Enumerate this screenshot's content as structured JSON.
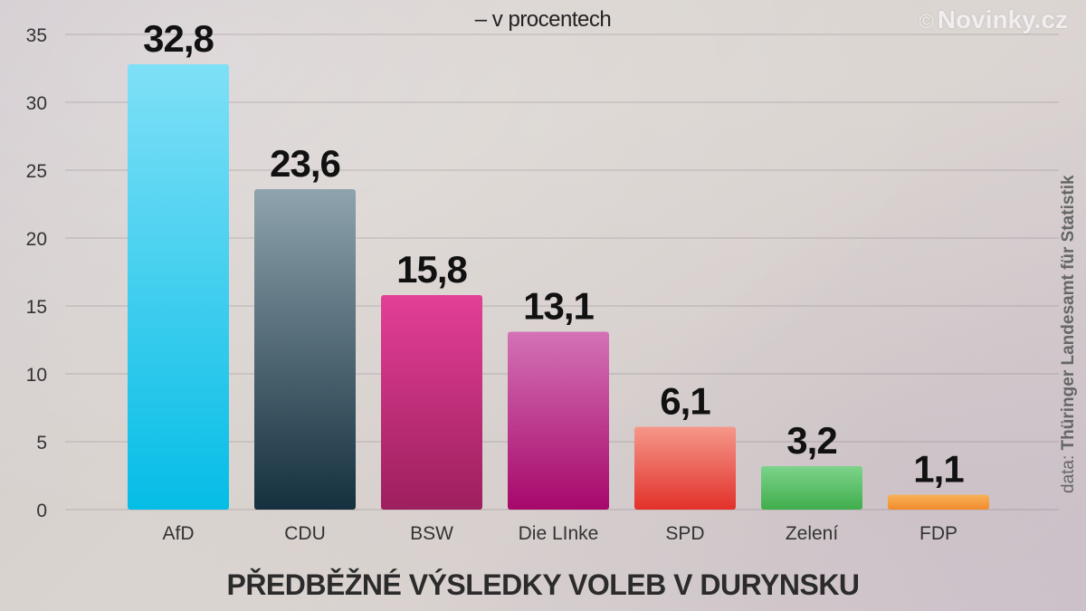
{
  "header": {
    "subtitle": "– v procentech",
    "brand_copy": "©",
    "brand_name": "Novinky.cz"
  },
  "source": {
    "prefix": "data: ",
    "name": "Thüringer Landesamt für Statistik"
  },
  "chart_data": {
    "type": "bar",
    "title": "PŘEDBĚŽNÉ VÝSLEDKY VOLEB V DURYNSKU",
    "subtitle": "– v procentech",
    "categories": [
      "AfD",
      "CDU",
      "BSW",
      "Die LInke",
      "SPD",
      "Zelení",
      "FDP"
    ],
    "values": [
      32.8,
      23.6,
      15.8,
      13.1,
      6.1,
      3.2,
      1.1
    ],
    "value_labels": [
      "32,8",
      "23,6",
      "15,8",
      "13,1",
      "6,1",
      "3,2",
      "1,1"
    ],
    "yticks": [
      0,
      5,
      10,
      15,
      20,
      25,
      30,
      35
    ],
    "ylim": [
      0,
      35
    ],
    "grid": true,
    "colors": [
      [
        "#7fe0f7",
        "#05bde6"
      ],
      [
        "#8ea3ad",
        "#15303e"
      ],
      [
        "#e33f96",
        "#9d1f5e"
      ],
      [
        "#d472b6",
        "#a6086a"
      ],
      [
        "#f5978a",
        "#e2312a"
      ],
      [
        "#7dd38b",
        "#3fae4c"
      ],
      [
        "#f8b25a",
        "#f28a2b"
      ]
    ]
  }
}
